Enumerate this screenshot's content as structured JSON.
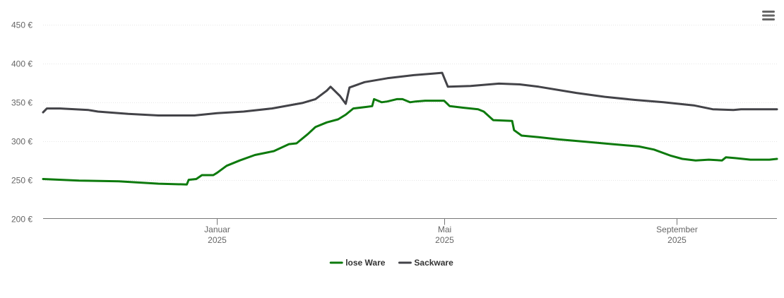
{
  "chart_data": {
    "type": "line",
    "y_ticks": [
      "200 €",
      "250 €",
      "300 €",
      "350 €",
      "400 €",
      "450 €"
    ],
    "y_tick_values": [
      200,
      250,
      300,
      350,
      400,
      450
    ],
    "ylim": [
      200,
      450
    ],
    "xlim": [
      "2024-10-01",
      "2025-10-24"
    ],
    "x_ticks": [
      {
        "date": "2025-01-01",
        "month": "Januar",
        "year": "2025"
      },
      {
        "date": "2025-05-01",
        "month": "Mai",
        "year": "2025"
      },
      {
        "date": "2025-09-01",
        "month": "September",
        "year": "2025"
      }
    ],
    "grid": true,
    "legend_position": "bottom-center",
    "series": [
      {
        "name": "lose Ware",
        "color": "#0d7a0d",
        "points": [
          [
            "2024-10-01",
            251
          ],
          [
            "2024-10-20",
            249
          ],
          [
            "2024-11-10",
            248
          ],
          [
            "2024-12-01",
            245
          ],
          [
            "2024-12-16",
            244
          ],
          [
            "2024-12-17",
            250
          ],
          [
            "2024-12-21",
            251
          ],
          [
            "2024-12-24",
            256
          ],
          [
            "2024-12-30",
            256
          ],
          [
            "2025-01-01",
            259
          ],
          [
            "2025-01-06",
            268
          ],
          [
            "2025-01-13",
            275
          ],
          [
            "2025-01-21",
            282
          ],
          [
            "2025-01-31",
            287
          ],
          [
            "2025-02-08",
            296
          ],
          [
            "2025-02-12",
            297
          ],
          [
            "2025-02-18",
            309
          ],
          [
            "2025-02-22",
            318
          ],
          [
            "2025-02-28",
            324
          ],
          [
            "2025-03-06",
            328
          ],
          [
            "2025-03-10",
            334
          ],
          [
            "2025-03-14",
            342
          ],
          [
            "2025-03-21",
            344
          ],
          [
            "2025-03-24",
            345
          ],
          [
            "2025-03-25",
            354
          ],
          [
            "2025-03-29",
            350
          ],
          [
            "2025-04-01",
            351
          ],
          [
            "2025-04-06",
            354
          ],
          [
            "2025-04-09",
            354
          ],
          [
            "2025-04-13",
            350
          ],
          [
            "2025-04-16",
            351
          ],
          [
            "2025-04-21",
            352
          ],
          [
            "2025-04-29",
            352
          ],
          [
            "2025-05-01",
            352
          ],
          [
            "2025-05-04",
            345
          ],
          [
            "2025-05-11",
            343
          ],
          [
            "2025-05-19",
            341
          ],
          [
            "2025-05-22",
            338
          ],
          [
            "2025-05-27",
            327
          ],
          [
            "2025-06-06",
            326
          ],
          [
            "2025-06-07",
            314
          ],
          [
            "2025-06-11",
            307
          ],
          [
            "2025-06-20",
            305
          ],
          [
            "2025-07-01",
            302
          ],
          [
            "2025-07-15",
            299
          ],
          [
            "2025-07-29",
            296
          ],
          [
            "2025-08-12",
            293
          ],
          [
            "2025-08-20",
            289
          ],
          [
            "2025-08-29",
            281
          ],
          [
            "2025-09-04",
            277
          ],
          [
            "2025-09-11",
            275
          ],
          [
            "2025-09-18",
            276
          ],
          [
            "2025-09-25",
            275
          ],
          [
            "2025-09-27",
            279
          ],
          [
            "2025-10-02",
            278
          ],
          [
            "2025-10-06",
            277
          ],
          [
            "2025-10-10",
            276
          ],
          [
            "2025-10-20",
            276
          ],
          [
            "2025-10-24",
            277
          ]
        ]
      },
      {
        "name": "Sackware",
        "color": "#434348",
        "points": [
          [
            "2024-10-01",
            337
          ],
          [
            "2024-10-03",
            342
          ],
          [
            "2024-10-10",
            342
          ],
          [
            "2024-10-25",
            340
          ],
          [
            "2024-10-30",
            338
          ],
          [
            "2024-11-15",
            335
          ],
          [
            "2024-12-01",
            333
          ],
          [
            "2024-12-20",
            333
          ],
          [
            "2025-01-01",
            336
          ],
          [
            "2025-01-15",
            338
          ],
          [
            "2025-01-30",
            342
          ],
          [
            "2025-02-15",
            349
          ],
          [
            "2025-02-22",
            354
          ],
          [
            "2025-02-28",
            365
          ],
          [
            "2025-03-02",
            370
          ],
          [
            "2025-03-07",
            358
          ],
          [
            "2025-03-10",
            348
          ],
          [
            "2025-03-12",
            369
          ],
          [
            "2025-03-20",
            376
          ],
          [
            "2025-04-01",
            381
          ],
          [
            "2025-04-15",
            385
          ],
          [
            "2025-04-25",
            387
          ],
          [
            "2025-04-30",
            388
          ],
          [
            "2025-05-01",
            382
          ],
          [
            "2025-05-03",
            370
          ],
          [
            "2025-05-15",
            371
          ],
          [
            "2025-05-30",
            374
          ],
          [
            "2025-06-10",
            373
          ],
          [
            "2025-06-20",
            370
          ],
          [
            "2025-07-10",
            362
          ],
          [
            "2025-07-25",
            357
          ],
          [
            "2025-08-10",
            353
          ],
          [
            "2025-08-25",
            350
          ],
          [
            "2025-09-10",
            346
          ],
          [
            "2025-09-20",
            341
          ],
          [
            "2025-10-01",
            340
          ],
          [
            "2025-10-05",
            341
          ],
          [
            "2025-10-24",
            341
          ]
        ]
      }
    ]
  },
  "menu": {
    "icon": "hamburger-menu-icon"
  }
}
